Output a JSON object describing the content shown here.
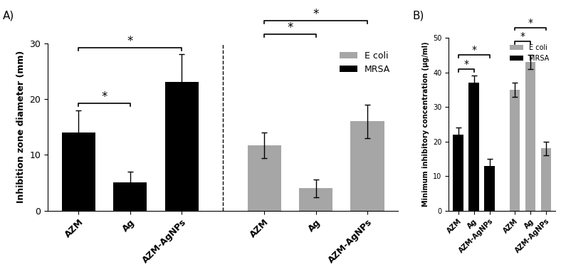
{
  "chart_data": [
    {
      "type": "bar",
      "panel": "A)",
      "y_label": "Inhibition zone diameter (mm)",
      "categories": [
        "AZM",
        "Ag",
        "AZM-AgNPs"
      ],
      "series": [
        {
          "name": "MRSA",
          "color": "#000000",
          "values": [
            14,
            5,
            23
          ],
          "errors": [
            4,
            2,
            5
          ]
        },
        {
          "name": "E coli",
          "color": "#a6a6a6",
          "values": [
            11.7,
            4,
            16
          ],
          "errors": [
            2.3,
            1.6,
            3
          ]
        }
      ],
      "comparisons": [
        {
          "series": "MRSA",
          "pair": [
            "AZM",
            "Ag"
          ],
          "label": "*"
        },
        {
          "series": "MRSA",
          "pair": [
            "AZM",
            "AZM-AgNPs"
          ],
          "label": "*"
        },
        {
          "series": "E coli",
          "pair": [
            "AZM",
            "Ag"
          ],
          "label": "*"
        },
        {
          "series": "E coli",
          "pair": [
            "AZM",
            "AZM-AgNPs"
          ],
          "label": "*"
        }
      ],
      "ylim": [
        0,
        30
      ],
      "yticks": [
        0,
        10,
        20,
        30
      ],
      "legend": "upper right"
    },
    {
      "type": "bar",
      "panel": "B)",
      "y_label": "Minimum inhibitory concentration (µg/ml)",
      "categories": [
        "AZM",
        "Ag",
        "AZM-AgNPs"
      ],
      "series": [
        {
          "name": "MRSA",
          "color": "#000000",
          "values": [
            22,
            37,
            13
          ],
          "errors": [
            2,
            2,
            2
          ]
        },
        {
          "name": "E coli",
          "color": "#a6a6a6",
          "values": [
            35,
            43,
            18
          ],
          "errors": [
            2,
            2,
            2
          ]
        }
      ],
      "comparisons": [
        {
          "series": "MRSA",
          "pair": [
            "AZM",
            "Ag"
          ],
          "label": "*"
        },
        {
          "series": "MRSA",
          "pair": [
            "AZM",
            "AZM-AgNPs"
          ],
          "label": "*"
        },
        {
          "series": "E coli",
          "pair": [
            "AZM",
            "Ag"
          ],
          "label": "*"
        },
        {
          "series": "E coli",
          "pair": [
            "AZM",
            "AZM-AgNPs"
          ],
          "label": "*"
        }
      ],
      "ylim": [
        0,
        50
      ],
      "yticks": [
        0,
        10,
        20,
        30,
        40,
        50
      ],
      "legend": "upper right"
    }
  ]
}
